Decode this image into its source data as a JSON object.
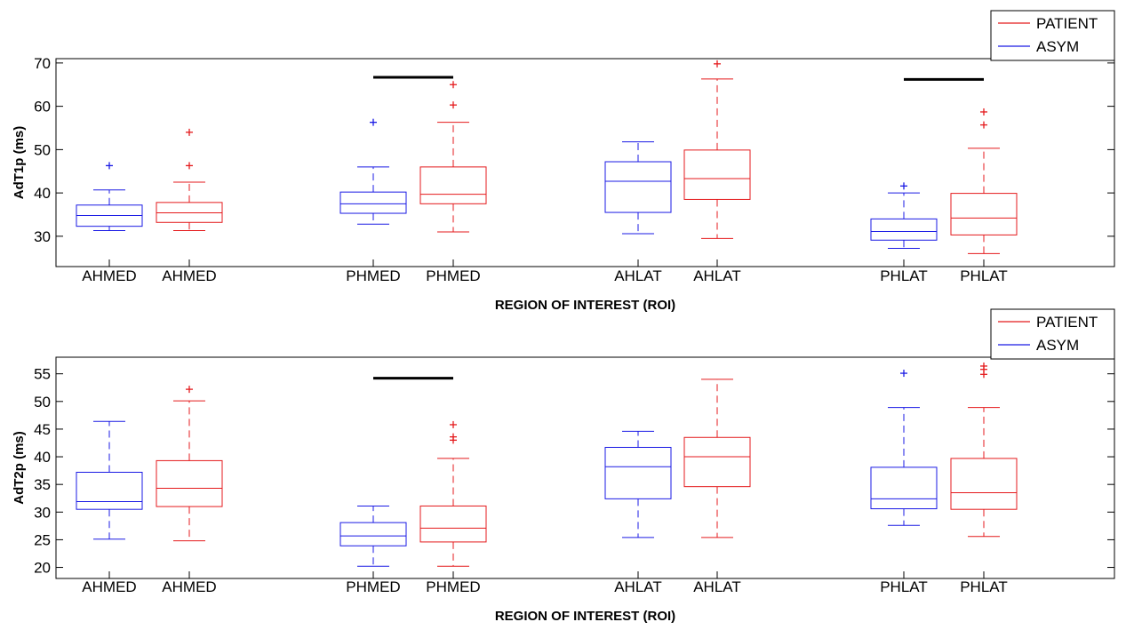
{
  "chart_data": [
    {
      "type": "boxplot",
      "title": "",
      "xlabel": "REGION OF INTEREST (ROI)",
      "ylabel": "AdT1p (ms)",
      "ylim": [
        23,
        71
      ],
      "yticks": [
        30,
        40,
        50,
        60,
        70
      ],
      "categories": [
        "AHMED",
        "AHMED",
        "PHMED",
        "PHMED",
        "AHLAT",
        "AHLAT",
        "PHLAT",
        "PHLAT"
      ],
      "legend": {
        "position": "top-right-outside",
        "entries": [
          {
            "label": "PATIENT",
            "color": "#e41a1c"
          },
          {
            "label": "ASYM",
            "color": "#1a1ae4"
          }
        ]
      },
      "boxes": [
        {
          "label": "AHMED",
          "group": "ASYM",
          "color": "#1a1ae4",
          "whisker_low": 31.3,
          "q1": 32.3,
          "median": 34.8,
          "q3": 37.2,
          "whisker_high": 40.7,
          "outliers": [
            46.3
          ]
        },
        {
          "label": "AHMED",
          "group": "PATIENT",
          "color": "#e41a1c",
          "whisker_low": 31.3,
          "q1": 33.2,
          "median": 35.4,
          "q3": 37.8,
          "whisker_high": 42.5,
          "outliers": [
            46.3,
            54
          ]
        },
        {
          "label": "PHMED",
          "group": "ASYM",
          "color": "#1a1ae4",
          "whisker_low": 32.8,
          "q1": 35.3,
          "median": 37.5,
          "q3": 40.2,
          "whisker_high": 46,
          "outliers": [
            56.3
          ]
        },
        {
          "label": "PHMED",
          "group": "PATIENT",
          "color": "#e41a1c",
          "whisker_low": 31,
          "q1": 37.5,
          "median": 39.7,
          "q3": 46,
          "whisker_high": 56.3,
          "outliers": [
            60.3,
            65
          ]
        },
        {
          "label": "AHLAT",
          "group": "ASYM",
          "color": "#1a1ae4",
          "whisker_low": 30.6,
          "q1": 35.5,
          "median": 42.7,
          "q3": 47.2,
          "whisker_high": 51.8,
          "outliers": []
        },
        {
          "label": "AHLAT",
          "group": "PATIENT",
          "color": "#e41a1c",
          "whisker_low": 29.5,
          "q1": 38.5,
          "median": 43.3,
          "q3": 49.9,
          "whisker_high": 66.3,
          "outliers": [
            69.8
          ]
        },
        {
          "label": "PHLAT",
          "group": "ASYM",
          "color": "#1a1ae4",
          "whisker_low": 27.2,
          "q1": 29.1,
          "median": 31.1,
          "q3": 34,
          "whisker_high": 40,
          "outliers": [
            41.6
          ]
        },
        {
          "label": "PHLAT",
          "group": "PATIENT",
          "color": "#e41a1c",
          "whisker_low": 26,
          "q1": 30.3,
          "median": 34.2,
          "q3": 39.9,
          "whisker_high": 50.3,
          "outliers": [
            55.7,
            58.7
          ]
        }
      ],
      "significance_bars": [
        {
          "pair": "PHMED",
          "y": 66.7
        },
        {
          "pair": "PHLAT",
          "y": 66.2
        }
      ]
    },
    {
      "type": "boxplot",
      "title": "",
      "xlabel": "REGION OF INTEREST (ROI)",
      "ylabel": "AdT2p (ms)",
      "ylim": [
        18,
        58
      ],
      "yticks": [
        20,
        25,
        30,
        35,
        40,
        45,
        50,
        55
      ],
      "categories": [
        "AHMED",
        "AHMED",
        "PHMED",
        "PHMED",
        "AHLAT",
        "AHLAT",
        "PHLAT",
        "PHLAT"
      ],
      "legend": {
        "position": "top-right-outside",
        "entries": [
          {
            "label": "PATIENT",
            "color": "#e41a1c"
          },
          {
            "label": "ASYM",
            "color": "#1a1ae4"
          }
        ]
      },
      "boxes": [
        {
          "label": "AHMED",
          "group": "ASYM",
          "color": "#1a1ae4",
          "whisker_low": 25.1,
          "q1": 30.5,
          "median": 31.9,
          "q3": 37.2,
          "whisker_high": 46.4,
          "outliers": []
        },
        {
          "label": "AHMED",
          "group": "PATIENT",
          "color": "#e41a1c",
          "whisker_low": 24.8,
          "q1": 31,
          "median": 34.3,
          "q3": 39.3,
          "whisker_high": 50.1,
          "outliers": [
            52.2
          ]
        },
        {
          "label": "PHMED",
          "group": "ASYM",
          "color": "#1a1ae4",
          "whisker_low": 20.2,
          "q1": 23.9,
          "median": 25.7,
          "q3": 28.1,
          "whisker_high": 31.1,
          "outliers": []
        },
        {
          "label": "PHMED",
          "group": "PATIENT",
          "color": "#e41a1c",
          "whisker_low": 20.2,
          "q1": 24.6,
          "median": 27.1,
          "q3": 31.1,
          "whisker_high": 39.7,
          "outliers": [
            43,
            43.6,
            45.8
          ]
        },
        {
          "label": "AHLAT",
          "group": "ASYM",
          "color": "#1a1ae4",
          "whisker_low": 25.4,
          "q1": 32.4,
          "median": 38.2,
          "q3": 41.7,
          "whisker_high": 44.6,
          "outliers": []
        },
        {
          "label": "AHLAT",
          "group": "PATIENT",
          "color": "#e41a1c",
          "whisker_low": 25.4,
          "q1": 34.6,
          "median": 40,
          "q3": 43.5,
          "whisker_high": 54,
          "outliers": []
        },
        {
          "label": "PHLAT",
          "group": "ASYM",
          "color": "#1a1ae4",
          "whisker_low": 27.6,
          "q1": 30.6,
          "median": 32.4,
          "q3": 38.1,
          "whisker_high": 48.9,
          "outliers": [
            55.1
          ]
        },
        {
          "label": "PHLAT",
          "group": "PATIENT",
          "color": "#e41a1c",
          "whisker_low": 25.6,
          "q1": 30.5,
          "median": 33.5,
          "q3": 39.7,
          "whisker_high": 48.9,
          "outliers": [
            54.9,
            55.8,
            56.4
          ]
        }
      ],
      "significance_bars": [
        {
          "pair": "PHMED",
          "y": 54.2
        }
      ]
    }
  ]
}
